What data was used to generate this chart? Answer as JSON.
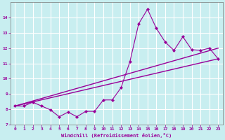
{
  "xlabel": "Windchill (Refroidissement éolien,°C)",
  "bg_color": "#c8eef0",
  "grid_color": "#ffffff",
  "line_color": "#990099",
  "xlim": [
    -0.5,
    23.5
  ],
  "ylim": [
    7,
    15
  ],
  "yticks": [
    7,
    8,
    9,
    10,
    11,
    12,
    13,
    14
  ],
  "xticks": [
    0,
    1,
    2,
    3,
    4,
    5,
    6,
    7,
    8,
    9,
    10,
    11,
    12,
    13,
    14,
    15,
    16,
    17,
    18,
    19,
    20,
    21,
    22,
    23
  ],
  "series1_x": [
    0,
    1,
    2,
    3,
    4,
    5,
    6,
    7,
    8,
    9,
    10,
    11,
    12,
    13,
    14,
    15,
    16,
    17,
    18,
    19,
    20,
    21,
    22,
    23
  ],
  "series1_y": [
    8.2,
    8.2,
    8.45,
    8.2,
    7.95,
    7.5,
    7.8,
    7.5,
    7.85,
    7.85,
    8.6,
    8.6,
    9.4,
    11.1,
    13.6,
    14.55,
    13.3,
    12.4,
    11.85,
    12.75,
    11.9,
    11.85,
    12.0,
    11.3
  ],
  "line1_x": [
    0,
    23
  ],
  "line1_y": [
    8.2,
    11.3
  ],
  "line2_x": [
    0,
    23
  ],
  "line2_y": [
    8.2,
    12.0
  ]
}
